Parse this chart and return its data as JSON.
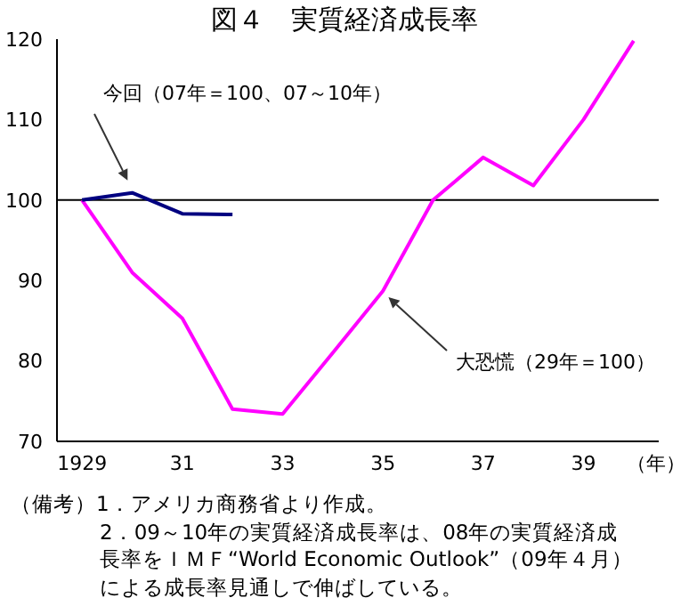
{
  "chart_data": {
    "type": "line",
    "title": "図４　実質経済成長率",
    "xlabel": "（年）",
    "xlim": [
      1928.5,
      1940.5
    ],
    "xticks": [
      1929,
      {
        "value": 1931,
        "label": "31"
      },
      {
        "value": 1933,
        "label": "33"
      },
      {
        "value": 1935,
        "label": "35"
      },
      {
        "value": 1937,
        "label": "37"
      },
      {
        "value": 1939,
        "label": "39"
      }
    ],
    "ylim": [
      70,
      120
    ],
    "yticks": [
      70,
      80,
      90,
      100,
      110,
      120
    ],
    "grid": false,
    "legend": false,
    "marker": "none",
    "line_style": "solid",
    "series": [
      {
        "color": "#ff00ff",
        "x": [
          1929,
          1930,
          1931,
          1932,
          1933,
          1934,
          1935,
          1936,
          1937,
          1938,
          1939,
          1940
        ],
        "values": [
          100,
          91,
          85.3,
          74,
          73.4,
          81,
          88.7,
          100,
          105.3,
          101.8,
          110,
          119.8
        ]
      },
      {
        "color": "#000080",
        "x": [
          1929,
          1930,
          1931,
          1932
        ],
        "values": [
          100,
          100.9,
          98.3,
          98.2
        ]
      }
    ],
    "ref_lines": [
      {
        "axis": "y",
        "value": 100,
        "color": "#000000"
      }
    ],
    "annotations": [
      "今回（07年＝100、07～10年）",
      "大恐慌（29年＝100）",
      "（備考）1．アメリカ商務省より作成。",
      "2．09～10年の実質経済成長率は、08年の実質経済成長率をＩＭＦ“World Economic Outlook”（09年４月）による成長率見通しで伸ばしている。"
    ]
  }
}
